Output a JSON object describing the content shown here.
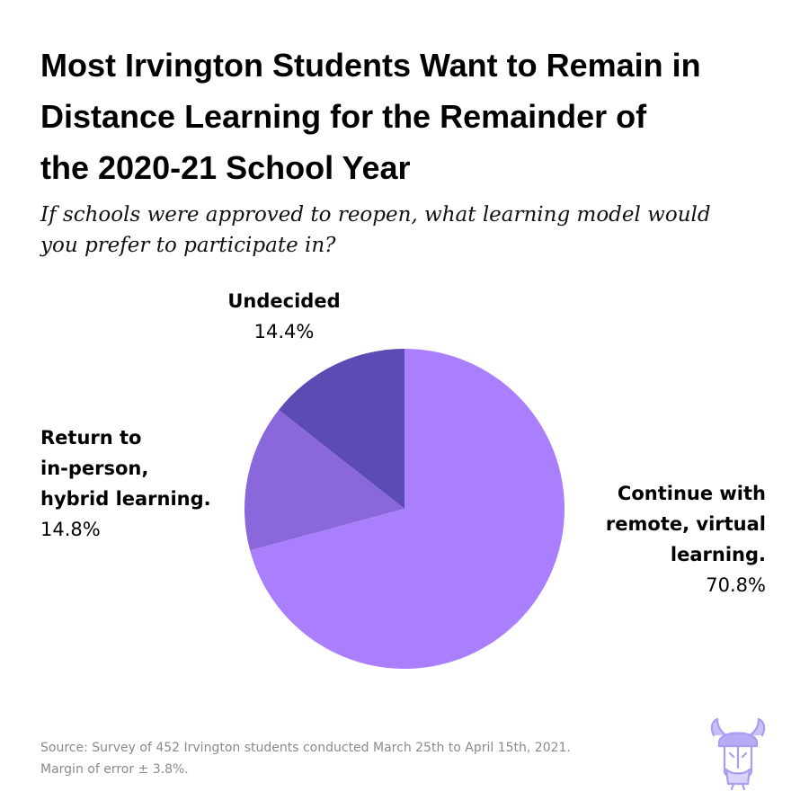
{
  "header": {
    "title_lines": [
      "Most Irvington Students Want to Remain in",
      "Distance Learning for the Remainder of",
      "the 2020-21 School Year"
    ],
    "subtitle_lines": [
      "If schools were approved to reopen, what learning model would",
      "you prefer to participate in?"
    ]
  },
  "chart_data": {
    "type": "pie",
    "title": "Most Irvington Students Want to Remain in Distance Learning for the Remainder of the 2020-21 School Year",
    "subtitle": "If schools were approved to reopen, what learning model would you prefer to participate in?",
    "slices": [
      {
        "label": "Undecided",
        "value": 14.4,
        "display": "14.4%",
        "color": "#5b4bb2"
      },
      {
        "label": "Continue with remote, virtual learning.",
        "value": 70.8,
        "display": "70.8%",
        "color": "#a97ffd"
      },
      {
        "label": "Return to in-person, hybrid learning.",
        "value": 14.8,
        "display": "14.8%",
        "color": "#8a68dc"
      }
    ],
    "start": "12 o'clock, counterclockwise from the Undecided slice",
    "labels_display": {
      "undecided": [
        "Undecided"
      ],
      "inperson": [
        "Return to",
        "in-person,",
        "hybrid learning."
      ],
      "remote": [
        "Continue with",
        "remote, virtual",
        "learning."
      ]
    }
  },
  "footer": {
    "source_lines": [
      "Source: Survey of 452 Irvington students conducted March 25th to April 15th, 2021.",
      "Margin of error ± 3.8%."
    ],
    "logo_icon": "viking-helmet-logo-icon",
    "logo_color": "#a99df0"
  }
}
